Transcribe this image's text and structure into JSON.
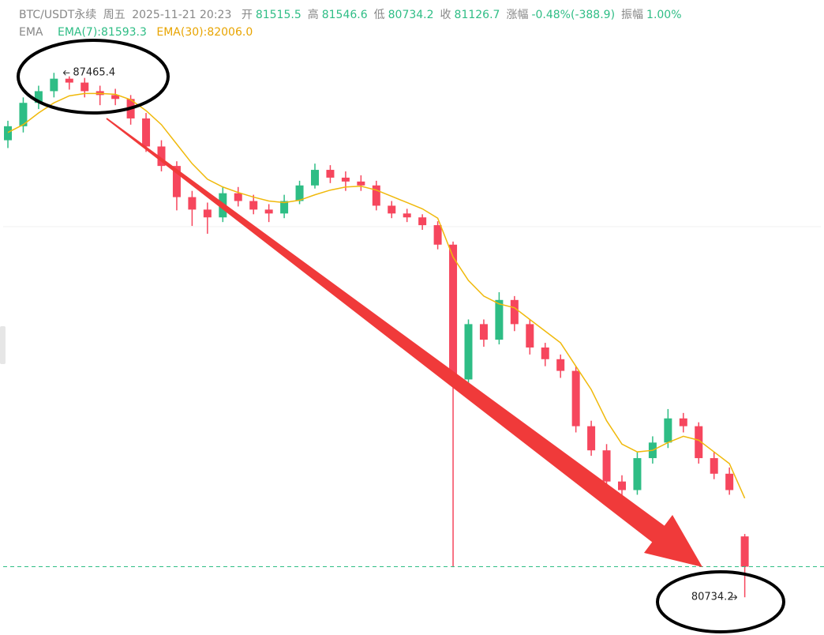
{
  "header": {
    "symbol": "BTC/USDT永续",
    "day": "周五",
    "datetime": "2025-11-21 20:23",
    "fields": [
      {
        "label": "开",
        "value": "81515.5"
      },
      {
        "label": "高",
        "value": "81546.6"
      },
      {
        "label": "低",
        "value": "80734.2"
      },
      {
        "label": "收",
        "value": "81126.7"
      },
      {
        "label": "涨幅",
        "value": "-0.48%(-388.9)"
      },
      {
        "label": "振幅",
        "value": "1.00%"
      }
    ],
    "indicator": "EMA",
    "ema7": "EMA(7):81593.3",
    "ema30": "EMA(30):82006.0"
  },
  "chart_data": {
    "type": "candlestick",
    "ylim": [
      80250,
      88400
    ],
    "up_color": "#2ebd85",
    "down_color": "#f6465d",
    "candles": [
      [
        86600,
        86850,
        86500,
        86780
      ],
      [
        86780,
        87150,
        86700,
        87080
      ],
      [
        87080,
        87300,
        87000,
        87230
      ],
      [
        87230,
        87465.4,
        87150,
        87390
      ],
      [
        87390,
        87420,
        87250,
        87340
      ],
      [
        87340,
        87400,
        87150,
        87230
      ],
      [
        87230,
        87300,
        87050,
        87180
      ],
      [
        87180,
        87260,
        87050,
        87130
      ],
      [
        87130,
        87180,
        86800,
        86880
      ],
      [
        86880,
        86950,
        86450,
        86520
      ],
      [
        86520,
        86600,
        86200,
        86270
      ],
      [
        86270,
        86330,
        85700,
        85870
      ],
      [
        85870,
        85950,
        85500,
        85710
      ],
      [
        85710,
        85800,
        85400,
        85610
      ],
      [
        85610,
        86000,
        85550,
        85920
      ],
      [
        85920,
        86000,
        85750,
        85820
      ],
      [
        85820,
        85900,
        85650,
        85710
      ],
      [
        85710,
        85780,
        85550,
        85660
      ],
      [
        85660,
        85900,
        85600,
        85820
      ],
      [
        85820,
        86080,
        85780,
        86020
      ],
      [
        86020,
        86300,
        85980,
        86220
      ],
      [
        86220,
        86280,
        86050,
        86120
      ],
      [
        86120,
        86200,
        85950,
        86070
      ],
      [
        86070,
        86150,
        85950,
        86020
      ],
      [
        86020,
        86080,
        85700,
        85760
      ],
      [
        85760,
        85820,
        85600,
        85660
      ],
      [
        85660,
        85720,
        85550,
        85610
      ],
      [
        85610,
        85650,
        85450,
        85510
      ],
      [
        85510,
        85560,
        85200,
        85260
      ],
      [
        85260,
        85300,
        81120,
        83530
      ],
      [
        83530,
        84300,
        83400,
        84240
      ],
      [
        84240,
        84300,
        83950,
        84040
      ],
      [
        84040,
        84650,
        83980,
        84550
      ],
      [
        84550,
        84600,
        84150,
        84240
      ],
      [
        84240,
        84300,
        83850,
        83940
      ],
      [
        83940,
        84000,
        83700,
        83790
      ],
      [
        83790,
        83850,
        83550,
        83640
      ],
      [
        83640,
        83700,
        82850,
        82930
      ],
      [
        82930,
        83000,
        82550,
        82620
      ],
      [
        82620,
        82700,
        82150,
        82220
      ],
      [
        82220,
        82300,
        81850,
        82110
      ],
      [
        82110,
        82600,
        82050,
        82520
      ],
      [
        82520,
        82800,
        82450,
        82720
      ],
      [
        82720,
        83150,
        82650,
        83030
      ],
      [
        83030,
        83100,
        82850,
        82930
      ],
      [
        82930,
        82980,
        82450,
        82520
      ],
      [
        82520,
        82600,
        82250,
        82320
      ],
      [
        82320,
        82400,
        82050,
        82110
      ],
      [
        81515.5,
        81546.6,
        80734.2,
        81126.7
      ]
    ],
    "ema30": {
      "color": "#f0b90b",
      "values": [
        86700,
        86800,
        86950,
        87080,
        87170,
        87200,
        87200,
        87190,
        87120,
        86980,
        86800,
        86550,
        86300,
        86100,
        86000,
        85930,
        85870,
        85820,
        85800,
        85830,
        85900,
        85960,
        86000,
        86010,
        85960,
        85880,
        85800,
        85720,
        85600,
        85100,
        84800,
        84600,
        84500,
        84450,
        84300,
        84150,
        84000,
        83700,
        83400,
        83000,
        82700,
        82600,
        82620,
        82720,
        82800,
        82750,
        82600,
        82450,
        82006.0
      ]
    },
    "high_label": "87465.4",
    "low_label": "80734.2",
    "last_price": 81126.7
  }
}
